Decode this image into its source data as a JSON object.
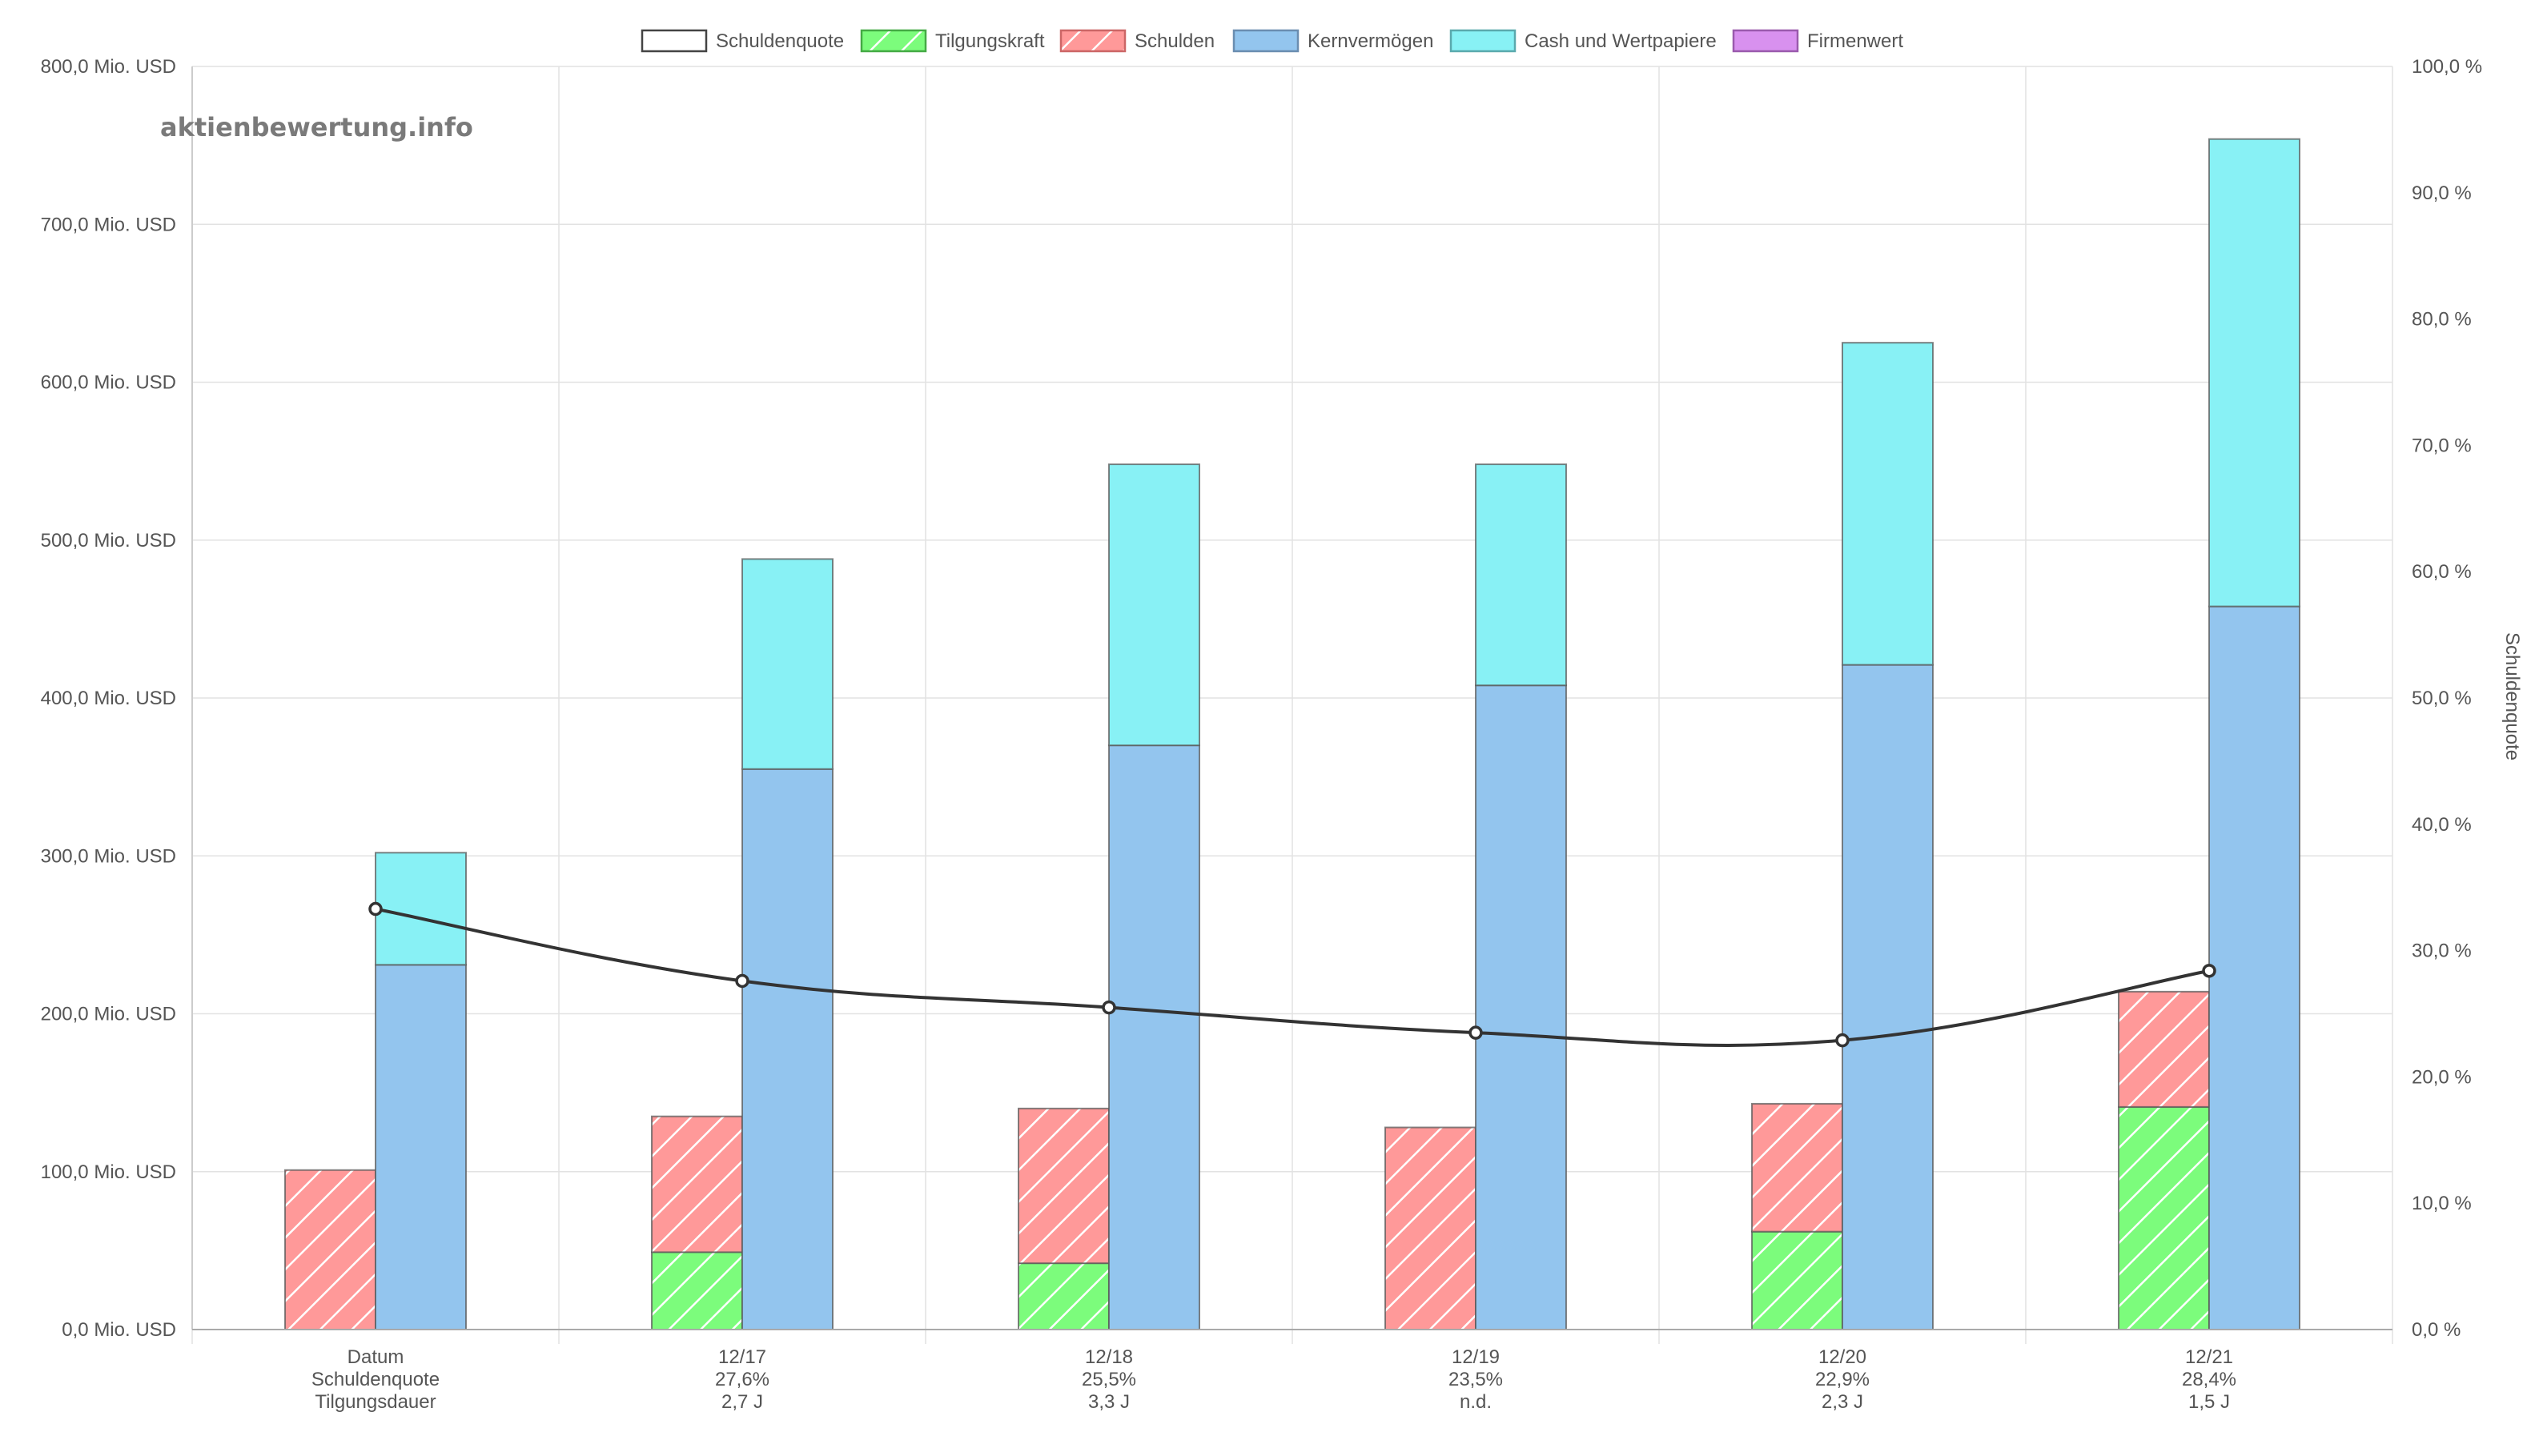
{
  "chart_data": {
    "type": "bar",
    "watermark": "aktienbewertung.info",
    "categories": [
      "Datum",
      "12/17",
      "12/18",
      "12/19",
      "12/20",
      "12/21"
    ],
    "category_rows": {
      "row_labels": [
        "Datum",
        "Schuldenquote",
        "Tilgungsdauer"
      ],
      "schuldenquote_labels": [
        "27,6%",
        "25,5%",
        "23,5%",
        "22,9%",
        "28,4%"
      ],
      "tilgungsdauer_labels": [
        "2,7 J",
        "3,3 J",
        "n.d.",
        "2,3 J",
        "1,5 J"
      ]
    },
    "y_left": {
      "min": 0,
      "max": 800,
      "step": 100,
      "unit": "Mio. USD",
      "tick_labels": [
        "0,0 Mio. USD",
        "100,0 Mio. USD",
        "200,0 Mio. USD",
        "300,0 Mio. USD",
        "400,0 Mio. USD",
        "500,0 Mio. USD",
        "600,0 Mio. USD",
        "700,0 Mio. USD",
        "800,0 Mio. USD"
      ]
    },
    "y_right": {
      "min": 0,
      "max": 100,
      "step": 10,
      "title": "Schuldenquote",
      "tick_labels": [
        "0,0 %",
        "10,0 %",
        "20,0 %",
        "30,0 %",
        "40,0 %",
        "50,0 %",
        "60,0 %",
        "70,0 %",
        "80,0 %",
        "90,0 %",
        "100,0 %"
      ]
    },
    "legend": [
      {
        "name": "Schuldenquote",
        "fill": "#ffffff",
        "border": "#444444",
        "pattern": false
      },
      {
        "name": "Tilgungskraft",
        "fill": "#7cfc7c",
        "border": "#44aa44",
        "pattern": true
      },
      {
        "name": "Schulden",
        "fill": "#ff9999",
        "border": "#cc6666",
        "pattern": true
      },
      {
        "name": "Kernvermögen",
        "fill": "#93c5ee",
        "border": "#6a8db0",
        "pattern": false
      },
      {
        "name": "Cash und Wertpapiere",
        "fill": "#88f1f5",
        "border": "#5aa9ad",
        "pattern": false
      },
      {
        "name": "Firmenwert",
        "fill": "#d891ef",
        "border": "#9a5aad",
        "pattern": false
      }
    ],
    "series": [
      {
        "name": "Tilgungskraft",
        "stack": "left",
        "values": [
          0,
          49,
          42,
          0,
          62,
          141
        ]
      },
      {
        "name": "Schulden",
        "stack": "left",
        "values": [
          101,
          86,
          98,
          128,
          81,
          73
        ]
      },
      {
        "name": "Kernvermögen",
        "stack": "right",
        "values": [
          231,
          355,
          370,
          408,
          421,
          458
        ]
      },
      {
        "name": "Cash und Wertpapiere",
        "stack": "right",
        "values": [
          71,
          133,
          178,
          140,
          204,
          296
        ]
      },
      {
        "name": "Firmenwert",
        "stack": "right",
        "values": [
          0,
          0,
          0,
          0,
          0,
          0
        ]
      },
      {
        "name": "Schuldenquote",
        "type": "line",
        "axis": "right",
        "values": [
          33.3,
          27.6,
          25.5,
          23.5,
          22.9,
          28.4
        ]
      }
    ],
    "colors": {
      "Tilgungskraft": "#7cfc7c",
      "Schulden": "#ff9999",
      "Kernvermögen": "#93c5ee",
      "Cash und Wertpapiere": "#88f1f5",
      "Firmenwert": "#d891ef",
      "line": "#333333",
      "grid": "#e2e2e2"
    }
  }
}
